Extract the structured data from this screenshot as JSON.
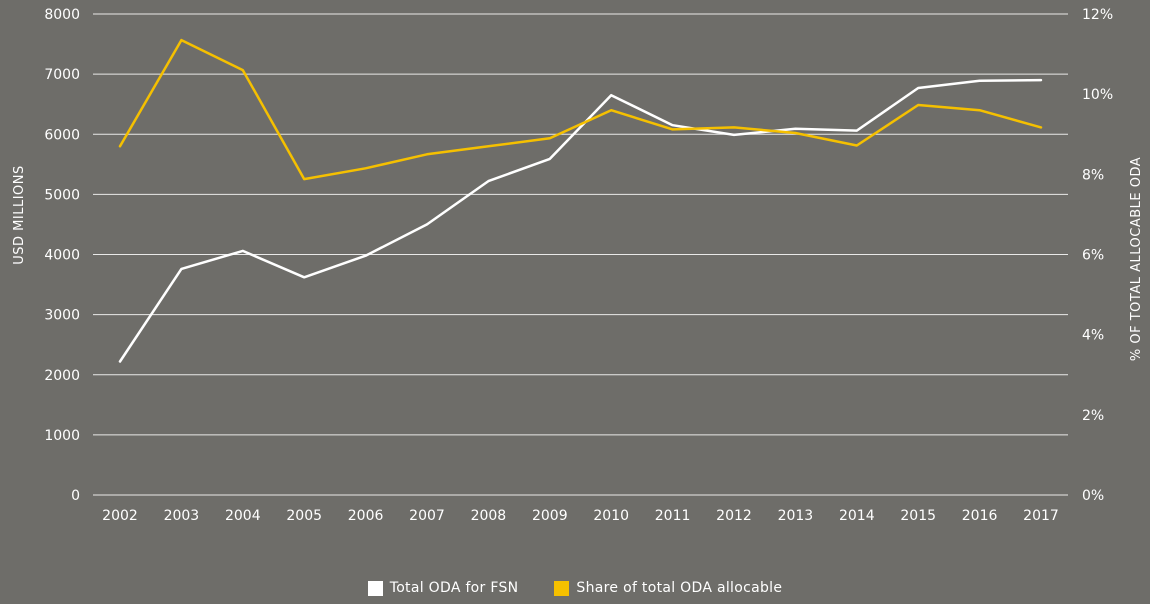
{
  "chart_data": {
    "type": "line",
    "x": [
      "2002",
      "2003",
      "2004",
      "2005",
      "2006",
      "2007",
      "2008",
      "2009",
      "2010",
      "2011",
      "2012",
      "2013",
      "2014",
      "2015",
      "2016",
      "2017"
    ],
    "y_left": {
      "label": "USD MILLIONS",
      "lim": [
        0,
        8000
      ],
      "ticks": [
        "0",
        "1000",
        "2000",
        "3000",
        "4000",
        "5000",
        "6000",
        "7000",
        "8000"
      ]
    },
    "y_right": {
      "label": "% OF TOTAL ALLOCABLE ODA",
      "lim": [
        0,
        12
      ],
      "ticks": [
        "0%",
        "2%",
        "4%",
        "6%",
        "8%",
        "10%",
        "12%"
      ]
    },
    "grid": true,
    "legend_position": "bottom-center",
    "series": [
      {
        "name": "Total ODA for FSN",
        "axis": "left",
        "color": "#ffffff",
        "values": [
          2220,
          3760,
          4060,
          3620,
          3980,
          4500,
          5220,
          5590,
          6650,
          6150,
          5990,
          6090,
          6060,
          6770,
          6890,
          6900
        ]
      },
      {
        "name": "Share of total ODA allocable",
        "axis": "right",
        "color": "#f5c000",
        "values": [
          8.7,
          11.35,
          10.6,
          7.88,
          8.15,
          8.5,
          8.7,
          8.9,
          9.6,
          9.12,
          9.17,
          9.03,
          8.72,
          9.73,
          9.6,
          9.17
        ]
      }
    ]
  }
}
